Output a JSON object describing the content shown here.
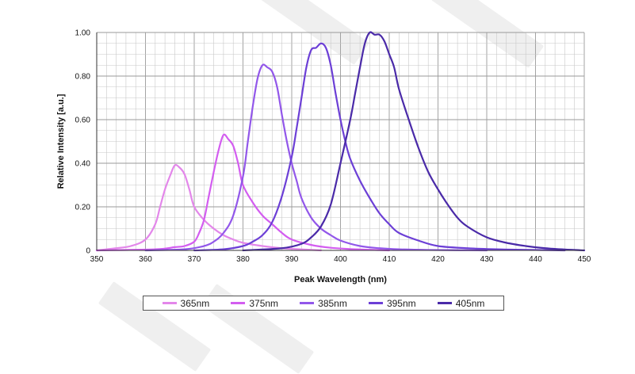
{
  "chart_data": {
    "type": "line",
    "title": "",
    "xlabel": "Peak Wavelength (nm)",
    "ylabel": "Relative Intensity [a.u.]",
    "xlim": [
      350,
      450
    ],
    "ylim": [
      0,
      1.0
    ],
    "x_ticks": [
      350,
      360,
      370,
      380,
      390,
      400,
      410,
      420,
      430,
      440,
      450
    ],
    "x_tick_labels": [
      "350",
      "360",
      "370",
      "380",
      "390",
      "400",
      "410",
      "420",
      "430",
      "440",
      "450"
    ],
    "y_ticks": [
      0,
      0.2,
      0.4,
      0.6,
      0.8,
      1.0
    ],
    "y_tick_labels": [
      "0",
      "0.20",
      "0.40",
      "0.60",
      "0.80",
      "1.00"
    ],
    "grid": true,
    "legend_position": "bottom",
    "series": [
      {
        "name": "365nm",
        "color": "#e387ea",
        "x": [
          350,
          354,
          357,
          360,
          362,
          363,
          364,
          365,
          366,
          367,
          368,
          369,
          370,
          372,
          374,
          376,
          378,
          380,
          384,
          388,
          392,
          396
        ],
        "y": [
          0,
          0.01,
          0.02,
          0.05,
          0.12,
          0.2,
          0.28,
          0.34,
          0.39,
          0.38,
          0.35,
          0.28,
          0.2,
          0.14,
          0.1,
          0.07,
          0.05,
          0.035,
          0.02,
          0.01,
          0.005,
          0
        ]
      },
      {
        "name": "375nm",
        "color": "#d35df0",
        "x": [
          350,
          362,
          366,
          368,
          370,
          371,
          372,
          373,
          374,
          375,
          376,
          377,
          378,
          379,
          380,
          382,
          384,
          386,
          388,
          390,
          394,
          398,
          402,
          406,
          410
        ],
        "y": [
          0,
          0.005,
          0.015,
          0.02,
          0.04,
          0.08,
          0.14,
          0.25,
          0.36,
          0.46,
          0.53,
          0.51,
          0.48,
          0.4,
          0.3,
          0.22,
          0.16,
          0.12,
          0.08,
          0.05,
          0.025,
          0.012,
          0.006,
          0.003,
          0
        ]
      },
      {
        "name": "385nm",
        "color": "#9257ea",
        "x": [
          360,
          368,
          372,
          374,
          376,
          378,
          380,
          381,
          382,
          383,
          384,
          385,
          386,
          387,
          388,
          389,
          390,
          391,
          392,
          394,
          396,
          398,
          400,
          404,
          408,
          412,
          418,
          424,
          430
        ],
        "y": [
          0,
          0.005,
          0.02,
          0.04,
          0.08,
          0.16,
          0.34,
          0.5,
          0.66,
          0.79,
          0.85,
          0.84,
          0.82,
          0.75,
          0.62,
          0.5,
          0.4,
          0.32,
          0.24,
          0.15,
          0.1,
          0.07,
          0.045,
          0.02,
          0.01,
          0.005,
          0.002,
          0.001,
          0
        ]
      },
      {
        "name": "395nm",
        "color": "#6c3fd6",
        "x": [
          370,
          376,
          380,
          382,
          384,
          386,
          388,
          390,
          391,
          392,
          393,
          394,
          395,
          396,
          397,
          398,
          399,
          400,
          401,
          402,
          404,
          406,
          408,
          410,
          412,
          416,
          420,
          426,
          432,
          440,
          446
        ],
        "y": [
          0,
          0.005,
          0.02,
          0.04,
          0.07,
          0.13,
          0.25,
          0.43,
          0.56,
          0.7,
          0.84,
          0.92,
          0.93,
          0.95,
          0.93,
          0.85,
          0.72,
          0.6,
          0.5,
          0.42,
          0.32,
          0.24,
          0.17,
          0.12,
          0.08,
          0.045,
          0.02,
          0.01,
          0.005,
          0.002,
          0
        ]
      },
      {
        "name": "405nm",
        "color": "#4a2aa8",
        "x": [
          380,
          388,
          392,
          394,
          396,
          398,
          400,
          402,
          403,
          404,
          405,
          406,
          407,
          408,
          409,
          410,
          411,
          412,
          414,
          416,
          418,
          420,
          422,
          424,
          426,
          430,
          434,
          438,
          442,
          446,
          450
        ],
        "y": [
          0,
          0.01,
          0.03,
          0.06,
          0.11,
          0.21,
          0.4,
          0.6,
          0.72,
          0.84,
          0.95,
          1.0,
          0.99,
          0.99,
          0.96,
          0.9,
          0.84,
          0.74,
          0.6,
          0.47,
          0.36,
          0.28,
          0.21,
          0.15,
          0.11,
          0.06,
          0.035,
          0.02,
          0.01,
          0.004,
          0
        ]
      }
    ]
  }
}
